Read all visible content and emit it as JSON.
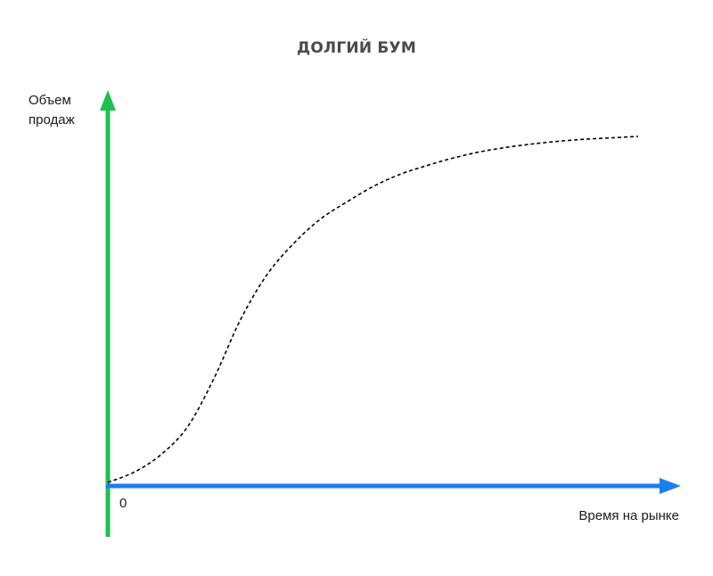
{
  "chart_data": {
    "type": "line",
    "title": "ДОЛГИЙ БУМ",
    "ylabel": "Объем продаж",
    "xlabel": "Время на рынке",
    "origin_label": "0",
    "grid": false,
    "legend": "none",
    "series": [
      {
        "style": "dashed",
        "color": "#000000",
        "x": [
          0,
          0.05,
          0.1,
          0.15,
          0.2,
          0.25,
          0.3,
          0.35,
          0.4,
          0.45,
          0.5,
          0.55,
          0.6,
          0.65,
          0.7,
          0.75,
          0.8,
          0.85,
          0.9,
          0.95,
          1.0
        ],
        "values": [
          0.0,
          0.03,
          0.08,
          0.16,
          0.3,
          0.47,
          0.6,
          0.69,
          0.76,
          0.81,
          0.855,
          0.89,
          0.915,
          0.937,
          0.955,
          0.968,
          0.978,
          0.986,
          0.992,
          0.996,
          1.0
        ]
      }
    ],
    "xlim": [
      0,
      1.05
    ],
    "ylim": [
      0,
      1.3
    ]
  },
  "colors": {
    "y_axis": "#1ec04e",
    "x_axis": "#1a7ff0",
    "curve": "#000000",
    "title": "#4a4a4a"
  }
}
